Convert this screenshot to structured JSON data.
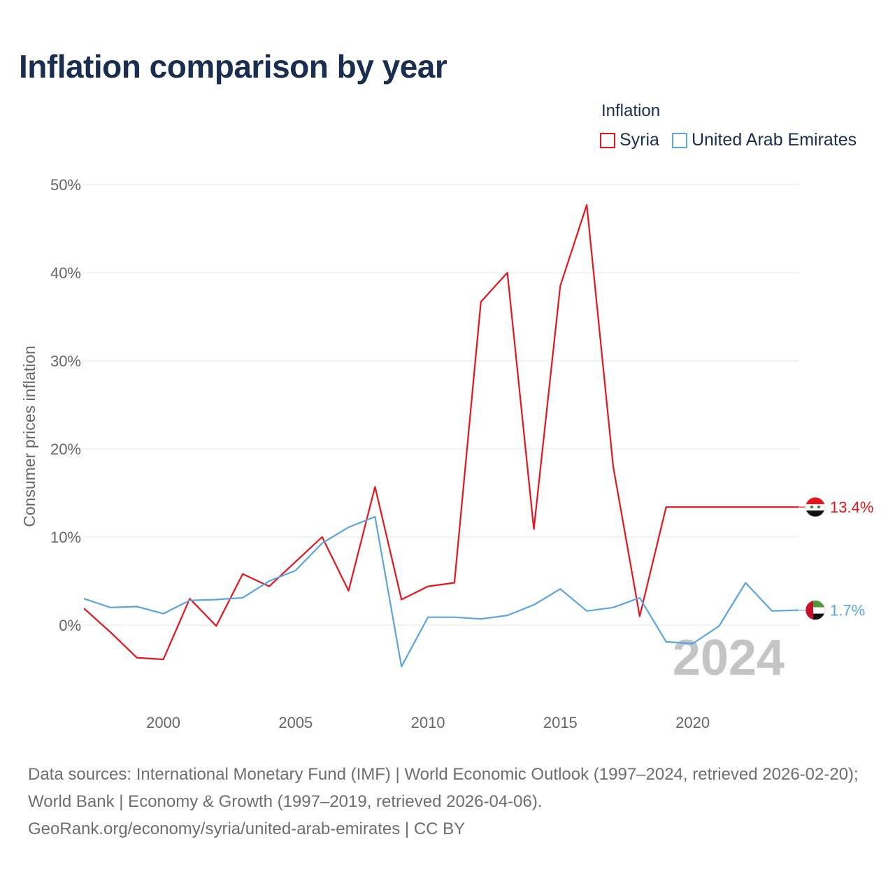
{
  "title": "Inflation comparison by year",
  "legend": {
    "title": "Inflation",
    "items": [
      {
        "label": "Syria",
        "color": "#e8141b"
      },
      {
        "label": "United Arab Emirates",
        "color": "#5ba4e2"
      }
    ]
  },
  "chart_data": {
    "type": "line",
    "title": "Inflation comparison by year",
    "ylabel": "Consumer prices inflation",
    "xlabel": "",
    "ylim": [
      -9,
      50
    ],
    "xlim": [
      1997,
      2024
    ],
    "yticks": [
      0,
      10,
      20,
      30,
      40,
      50
    ],
    "ytick_labels": [
      "0%",
      "10%",
      "20%",
      "30%",
      "40%",
      "50%"
    ],
    "xticks": [
      2000,
      2005,
      2010,
      2015,
      2020
    ],
    "xtick_labels": [
      "2000",
      "2005",
      "2010",
      "2015",
      "2020"
    ],
    "x": [
      1997,
      1998,
      1999,
      2000,
      2001,
      2002,
      2003,
      2004,
      2005,
      2006,
      2007,
      2008,
      2009,
      2010,
      2011,
      2012,
      2013,
      2014,
      2015,
      2016,
      2017,
      2018,
      2019,
      2020,
      2021,
      2022,
      2023,
      2024
    ],
    "series": [
      {
        "name": "Syria",
        "color": "#e8141b",
        "end_label": "13.4%",
        "values": [
          1.9,
          -0.8,
          -3.7,
          -3.9,
          3.0,
          -0.1,
          5.8,
          4.4,
          7.2,
          10.0,
          3.9,
          15.7,
          2.9,
          4.4,
          4.8,
          36.7,
          40.0,
          10.9,
          38.5,
          47.7,
          18.0,
          1.0,
          13.4,
          13.4,
          13.4,
          13.4,
          13.4,
          13.4
        ]
      },
      {
        "name": "United Arab Emirates",
        "color": "#5ba4e2",
        "end_label": "1.7%",
        "values": [
          3.0,
          2.0,
          2.1,
          1.3,
          2.8,
          2.9,
          3.1,
          5.0,
          6.2,
          9.3,
          11.1,
          12.3,
          -4.7,
          0.9,
          0.9,
          0.7,
          1.1,
          2.3,
          4.1,
          1.6,
          2.0,
          3.1,
          -1.9,
          -2.1,
          -0.1,
          4.8,
          1.6,
          1.7
        ]
      }
    ],
    "year_watermark": "2024"
  },
  "footer": {
    "line1": "Data sources: International Monetary Fund (IMF) | World Economic Outlook (1997–2024, retrieved 2026-02-20); World Bank | Economy & Growth (1997–2019, retrieved 2026-04-06).",
    "line2": "GeoRank.org/economy/syria/united-arab-emirates | CC BY"
  }
}
